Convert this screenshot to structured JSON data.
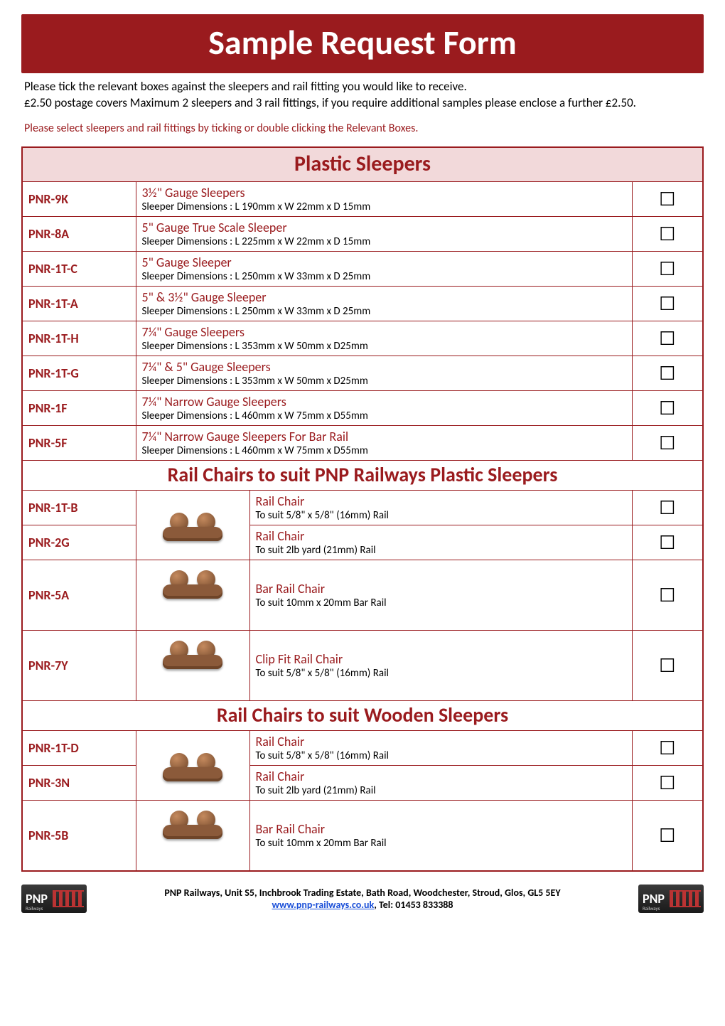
{
  "title": "Sample Request Form",
  "intro_line1": "Please tick the relevant boxes against the sleepers and rail fitting you would like to receive.",
  "intro_line2": "£2.50 postage covers Maximum 2 sleepers and 3 rail fittings, if you require additional samples please enclose a further £2.50.",
  "instruction": "Please select sleepers and rail fittings by ticking or double clicking the Relevant Boxes.",
  "checkbox_glyph": "☐",
  "colors": {
    "brand": "#9a1b1e",
    "section_bg": "#f2d9da",
    "link": "#1a4fd8"
  },
  "sections": {
    "sleepers": {
      "heading": "Plastic Sleepers",
      "rows": [
        {
          "code": "PNR-9K",
          "name": "3½\" Gauge Sleepers",
          "dims": "Sleeper Dimensions : L 190mm x W 22mm x D 15mm"
        },
        {
          "code": "PNR-8A",
          "name": "5\" Gauge True Scale Sleeper",
          "dims": "Sleeper Dimensions : L 225mm x W 22mm x D 15mm"
        },
        {
          "code": "PNR-1T-C",
          "name": "5\" Gauge Sleeper",
          "dims": "Sleeper Dimensions : L 250mm x W 33mm x D 25mm"
        },
        {
          "code": "PNR-1T-A",
          "name": "5\" & 3½\" Gauge Sleeper",
          "dims": "Sleeper Dimensions : L 250mm x W 33mm x D 25mm"
        },
        {
          "code": "PNR-1T-H",
          "name": "7¼\" Gauge Sleepers",
          "dims": "Sleeper Dimensions : L 353mm x W 50mm x D25mm"
        },
        {
          "code": "PNR-1T-G",
          "name": "7¼\" & 5\" Gauge Sleepers",
          "dims": "Sleeper Dimensions : L 353mm x W 50mm x D25mm"
        },
        {
          "code": "PNR-1F",
          "name": "7¼\" Narrow Gauge Sleepers",
          "dims": "Sleeper Dimensions : L 460mm x W 75mm x D55mm"
        },
        {
          "code": "PNR-5F",
          "name": "7¼\" Narrow Gauge Sleepers For Bar Rail",
          "dims": "Sleeper Dimensions : L 460mm x W 75mm x D55mm"
        }
      ]
    },
    "chairs_plastic": {
      "heading": "Rail Chairs to suit PNP Railways Plastic Sleepers",
      "rows": [
        {
          "code": "PNR-1T-B",
          "name": "Rail Chair",
          "dims": "To suit 5/8\" x 5/8\" (16mm) Rail",
          "img_rowspan": 2
        },
        {
          "code": "PNR-2G",
          "name": "Rail Chair",
          "dims": "To suit 2lb yard (21mm) Rail"
        },
        {
          "code": "PNR-5A",
          "name": "Bar Rail Chair",
          "dims": "To suit 10mm x 20mm Bar Rail",
          "img_rowspan": 1,
          "tall": true
        },
        {
          "code": "PNR-7Y",
          "name": "Clip Fit Rail Chair",
          "dims": "To suit 5/8\" x 5/8\" (16mm) Rail",
          "img_rowspan": 1,
          "tall": true
        }
      ]
    },
    "chairs_wood": {
      "heading": "Rail Chairs to suit Wooden Sleepers",
      "rows": [
        {
          "code": "PNR-1T-D",
          "name": "Rail Chair",
          "dims": "To suit 5/8\" x 5/8\" (16mm) Rail",
          "img_rowspan": 2
        },
        {
          "code": "PNR-3N",
          "name": "Rail Chair",
          "dims": "To suit 2lb yard (21mm) Rail"
        },
        {
          "code": "PNR-5B",
          "name": "Bar Rail Chair",
          "dims": "To suit 10mm x 20mm Bar Rail",
          "img_rowspan": 1,
          "tall": true
        }
      ]
    }
  },
  "footer": {
    "address": "PNP Railways, Unit S5, Inchbrook Trading Estate, Bath Road, Woodchester, Stroud, Glos, GL5 5EY",
    "website": "www.pnp-railways.co.uk",
    "tel_label": ", Tel: 01453 833388",
    "logo_text": "PNP",
    "logo_sub": "Railways"
  }
}
